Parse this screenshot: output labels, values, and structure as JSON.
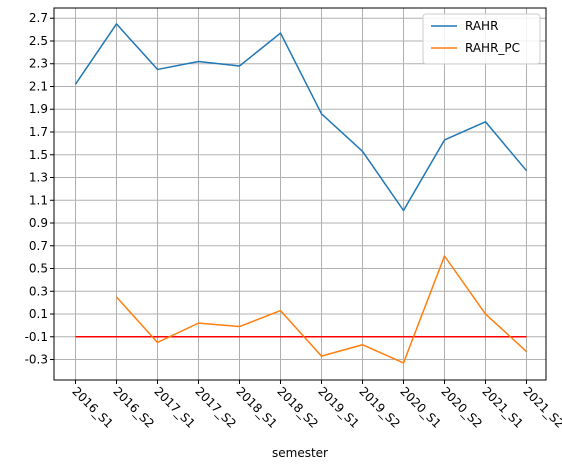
{
  "chart_data": {
    "type": "line",
    "xlabel": "semester",
    "ylabel": "",
    "title": "",
    "categories": [
      "2016_S1",
      "2016_S2",
      "2017_S1",
      "2017_S2",
      "2018_S1",
      "2018_S2",
      "2019_S1",
      "2019_S2",
      "2020_S1",
      "2020_S2",
      "2021_S1",
      "2021_S2"
    ],
    "yticks": [
      "-0.3",
      "-0.1",
      "0.1",
      "0.3",
      "0.5",
      "0.7",
      "0.9",
      "1.1",
      "1.3",
      "1.5",
      "1.7",
      "1.9",
      "2.1",
      "2.3",
      "2.5",
      "2.7"
    ],
    "ylim": [
      -0.48,
      2.79
    ],
    "grid": true,
    "legend_position": "top-right",
    "series": [
      {
        "name": "RAHR",
        "color": "#1f77b4",
        "values": [
          2.12,
          2.65,
          2.25,
          2.32,
          2.28,
          2.57,
          1.86,
          1.53,
          1.01,
          1.63,
          1.79,
          1.36
        ]
      },
      {
        "name": "RAHR_PC",
        "color": "#ff7f0e",
        "values": [
          null,
          0.25,
          -0.15,
          0.02,
          -0.01,
          0.13,
          -0.27,
          -0.17,
          -0.33,
          0.61,
          0.1,
          -0.23
        ]
      }
    ],
    "reference_line": {
      "value": -0.1,
      "color": "#ff0000"
    }
  }
}
